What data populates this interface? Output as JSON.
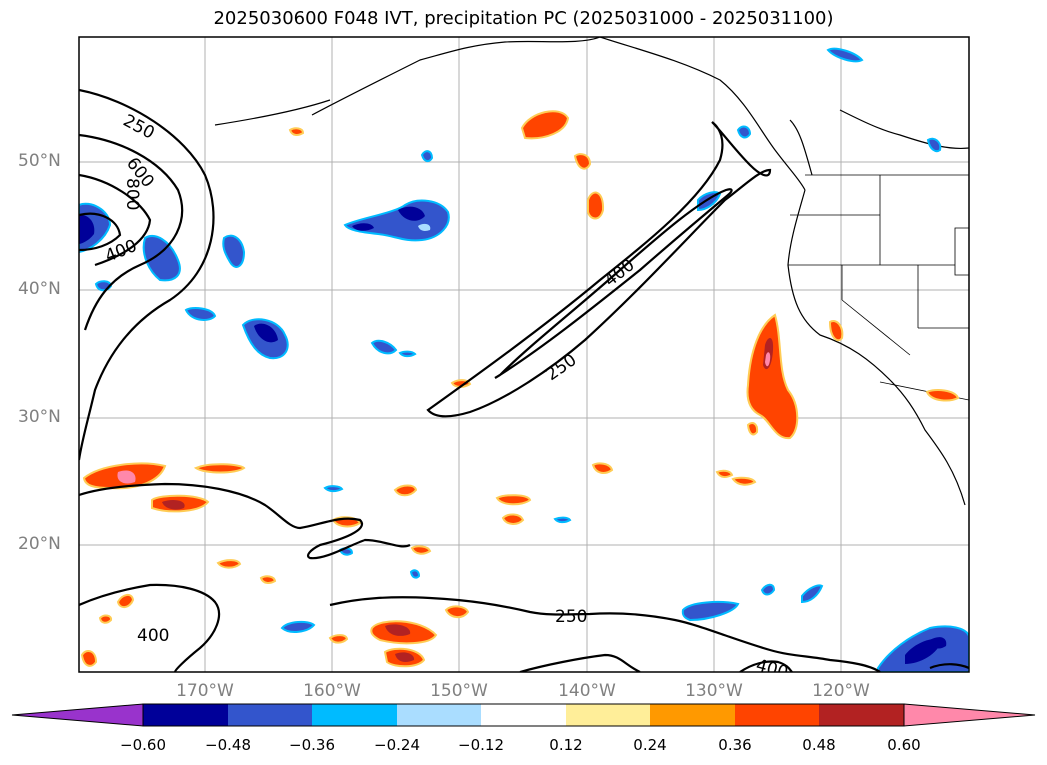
{
  "title": "2025030600 F048 IVT, precipitation PC (2025031000 - 2025031100)",
  "lat_labels": [
    "50°N",
    "40°N",
    "30°N",
    "20°N"
  ],
  "lon_labels": [
    "170°W",
    "160°W",
    "150°W",
    "140°W",
    "130°W",
    "120°W"
  ],
  "contour_labels": [
    "250",
    "600",
    "800",
    "400",
    "400",
    "250",
    "250",
    "400",
    "400"
  ],
  "colorbar": {
    "colors": [
      "#9933cc",
      "#000099",
      "#3355cc",
      "#00bbff",
      "#aaddff",
      "#ffffff",
      "#ffee99",
      "#ff9900",
      "#ff4400",
      "#b22222",
      "#ff88aa"
    ],
    "ticks": [
      "−0.60",
      "−0.48",
      "−0.36",
      "−0.24",
      "−0.12",
      "0.12",
      "0.24",
      "0.36",
      "0.48",
      "0.60"
    ]
  }
}
